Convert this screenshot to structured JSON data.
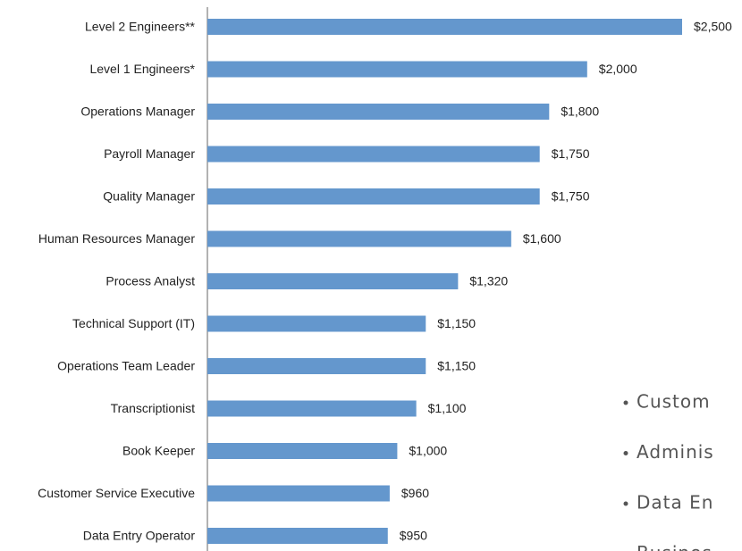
{
  "chart_data": {
    "type": "barh",
    "categories": [
      "Level 2 Engineers**",
      "Level 1 Engineers*",
      "Operations Manager",
      "Payroll Manager",
      "Quality Manager",
      "Human Resources Manager",
      "Process Analyst",
      "Technical Support (IT)",
      "Operations Team Leader",
      "Transcriptionist",
      "Book Keeper",
      "Customer Service Executive",
      "Data Entry Operator"
    ],
    "values": [
      2500,
      2000,
      1800,
      1750,
      1750,
      1600,
      1320,
      1150,
      1150,
      1100,
      1000,
      960,
      950
    ],
    "value_labels": [
      "$2,500",
      "$2,000",
      "$1,800",
      "$1,750",
      "$1,750",
      "$1,600",
      "$1,320",
      "$1,150",
      "$1,150",
      "$1,100",
      "$1,000",
      "$960",
      "$950"
    ],
    "color": "#6497cd",
    "xlim": [
      0,
      2500
    ]
  },
  "bullets": [
    "Custom",
    "Adminis",
    "Data En",
    "Busines"
  ]
}
